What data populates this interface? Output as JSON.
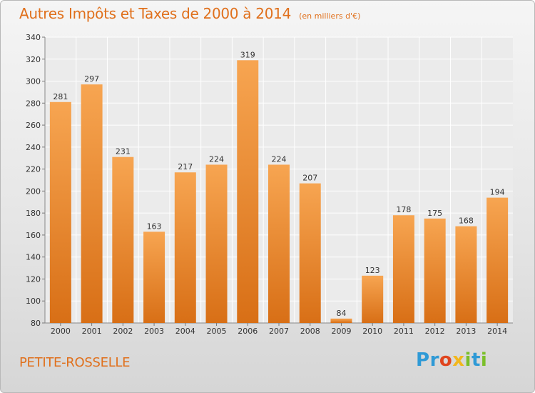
{
  "header": {
    "title": "Autres Impôts et Taxes de 2000 à 2014",
    "subtitle": "(en milliers d'€)"
  },
  "footer": {
    "town": "PETITE-ROSSELLE",
    "logo_text": "Proxiti"
  },
  "colors": {
    "accent": "#e0701c",
    "bar_top": "#f7a551",
    "bar_bottom": "#d86f16",
    "background_top": "#f5f5f5",
    "background_bottom": "#d6d6d6"
  },
  "chart_data": {
    "type": "bar",
    "title": "Autres Impôts et Taxes de 2000 à 2014",
    "subtitle": "(en milliers d'€)",
    "xlabel": "",
    "ylabel": "",
    "categories": [
      "2000",
      "2001",
      "2002",
      "2003",
      "2004",
      "2005",
      "2006",
      "2007",
      "2008",
      "2009",
      "2010",
      "2011",
      "2012",
      "2013",
      "2014"
    ],
    "values": [
      281,
      297,
      231,
      163,
      217,
      224,
      319,
      224,
      207,
      84,
      123,
      178,
      175,
      168,
      194
    ],
    "ylim": [
      80,
      340
    ],
    "yticks": [
      80,
      100,
      120,
      140,
      160,
      180,
      200,
      220,
      240,
      260,
      280,
      300,
      320,
      340
    ],
    "grid": true,
    "data_labels": true
  }
}
